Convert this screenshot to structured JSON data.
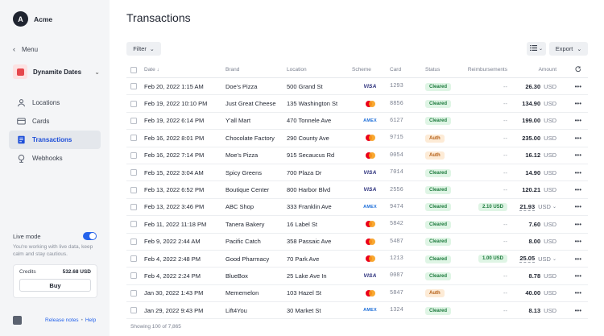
{
  "account": {
    "initial": "A",
    "name": "Acme"
  },
  "menu": {
    "back_label": "Menu"
  },
  "brand": {
    "name": "Dynamite Dates"
  },
  "nav": [
    {
      "label": "Locations",
      "icon": "location-icon",
      "active": false
    },
    {
      "label": "Cards",
      "icon": "card-icon",
      "active": false
    },
    {
      "label": "Transactions",
      "icon": "transactions-icon",
      "active": true
    },
    {
      "label": "Webhooks",
      "icon": "webhooks-icon",
      "active": false
    }
  ],
  "live_mode": {
    "label": "Live mode",
    "enabled": true,
    "description": "You're working with live data, keep calm and stay cautious."
  },
  "credits": {
    "label": "Credits",
    "value": "532.68 USD",
    "buy_label": "Buy"
  },
  "footer": {
    "release_notes": "Release notes",
    "separator": "•",
    "help": "Help"
  },
  "page": {
    "title": "Transactions"
  },
  "toolbar": {
    "filter_label": "Filter",
    "export_label": "Export"
  },
  "table": {
    "headers": {
      "date": "Date ↓",
      "brand": "Brand",
      "location": "Location",
      "scheme": "Scheme",
      "card": "Card",
      "status": "Status",
      "reimbursements": "Reimbursements",
      "amount": "Amount"
    },
    "rows": [
      {
        "date": "Feb 20, 2022 1:15 AM",
        "brand": "Doe's Pizza",
        "location": "500 Grand St",
        "scheme": "VISA",
        "card": "1293",
        "status": "Cleared",
        "reimb": "--",
        "amount": "26.30",
        "currency": "USD",
        "has_reimb_menu": false
      },
      {
        "date": "Feb 19, 2022 10:10 PM",
        "brand": "Just Great Cheese",
        "location": "135 Washington St",
        "scheme": "MC",
        "card": "8856",
        "status": "Cleared",
        "reimb": "--",
        "amount": "134.90",
        "currency": "USD",
        "has_reimb_menu": false
      },
      {
        "date": "Feb 19, 2022 6:14 PM",
        "brand": "Y'all Mart",
        "location": "470 Tonnele Ave",
        "scheme": "AMEX",
        "card": "6127",
        "status": "Cleared",
        "reimb": "--",
        "amount": "199.00",
        "currency": "USD",
        "has_reimb_menu": false
      },
      {
        "date": "Feb 16, 2022 8:01 PM",
        "brand": "Chocolate Factory",
        "location": "290 County Ave",
        "scheme": "MC",
        "card": "9715",
        "status": "Auth",
        "reimb": "--",
        "amount": "235.00",
        "currency": "USD",
        "has_reimb_menu": false
      },
      {
        "date": "Feb 16, 2022 7:14 PM",
        "brand": "Moe's Pizza",
        "location": "915 Secaucus Rd",
        "scheme": "MC",
        "card": "0054",
        "status": "Auth",
        "reimb": "--",
        "amount": "16.12",
        "currency": "USD",
        "has_reimb_menu": false
      },
      {
        "date": "Feb 15, 2022 3:04 AM",
        "brand": "Spicy Greens",
        "location": "700 Plaza Dr",
        "scheme": "VISA",
        "card": "7014",
        "status": "Cleared",
        "reimb": "--",
        "amount": "14.90",
        "currency": "USD",
        "has_reimb_menu": false
      },
      {
        "date": "Feb 13, 2022 6:52 PM",
        "brand": "Boutique Center",
        "location": "800 Harbor Blvd",
        "scheme": "VISA",
        "card": "2556",
        "status": "Cleared",
        "reimb": "--",
        "amount": "120.21",
        "currency": "USD",
        "has_reimb_menu": false
      },
      {
        "date": "Feb 13, 2022 3:46 PM",
        "brand": "ABC Shop",
        "location": "333 Franklin Ave",
        "scheme": "AMEX",
        "card": "9474",
        "status": "Cleared",
        "reimb": "2.10 USD",
        "amount": "21.93",
        "currency": "USD",
        "has_reimb_menu": true
      },
      {
        "date": "Feb 11, 2022 11:18 PM",
        "brand": "Tanera Bakery",
        "location": "16 Label St",
        "scheme": "MC",
        "card": "5842",
        "status": "Cleared",
        "reimb": "--",
        "amount": "7.60",
        "currency": "USD",
        "has_reimb_menu": false
      },
      {
        "date": "Feb 9, 2022 2:44 AM",
        "brand": "Pacific Catch",
        "location": "358 Passaic Ave",
        "scheme": "MC",
        "card": "5487",
        "status": "Cleared",
        "reimb": "--",
        "amount": "8.00",
        "currency": "USD",
        "has_reimb_menu": false
      },
      {
        "date": "Feb 4, 2022 2:48 PM",
        "brand": "Good Pharmacy",
        "location": "70 Park Ave",
        "scheme": "MC",
        "card": "1213",
        "status": "Cleared",
        "reimb": "1.00 USD",
        "amount": "25.05",
        "currency": "USD",
        "has_reimb_menu": true
      },
      {
        "date": "Feb 4, 2022 2:24 PM",
        "brand": "BlueBox",
        "location": "25 Lake Ave In",
        "scheme": "VISA",
        "card": "0087",
        "status": "Cleared",
        "reimb": "--",
        "amount": "8.78",
        "currency": "USD",
        "has_reimb_menu": false
      },
      {
        "date": "Jan 30, 2022 1:43 PM",
        "brand": "Mememelon",
        "location": "103 Hazel St",
        "scheme": "MC",
        "card": "5847",
        "status": "Auth",
        "reimb": "--",
        "amount": "40.00",
        "currency": "USD",
        "has_reimb_menu": false
      },
      {
        "date": "Jan 29, 2022 9:43 PM",
        "brand": "Lift4You",
        "location": "30 Market St",
        "scheme": "AMEX",
        "card": "1324",
        "status": "Cleared",
        "reimb": "--",
        "amount": "8.13",
        "currency": "USD",
        "has_reimb_menu": false
      }
    ]
  },
  "showing": "Showing 100 of 7,865",
  "colors": {
    "accent": "#2563eb",
    "cleared_bg": "#dff5e5",
    "cleared_fg": "#1d7a3d",
    "auth_bg": "#fdebd6",
    "auth_fg": "#b35c12"
  }
}
